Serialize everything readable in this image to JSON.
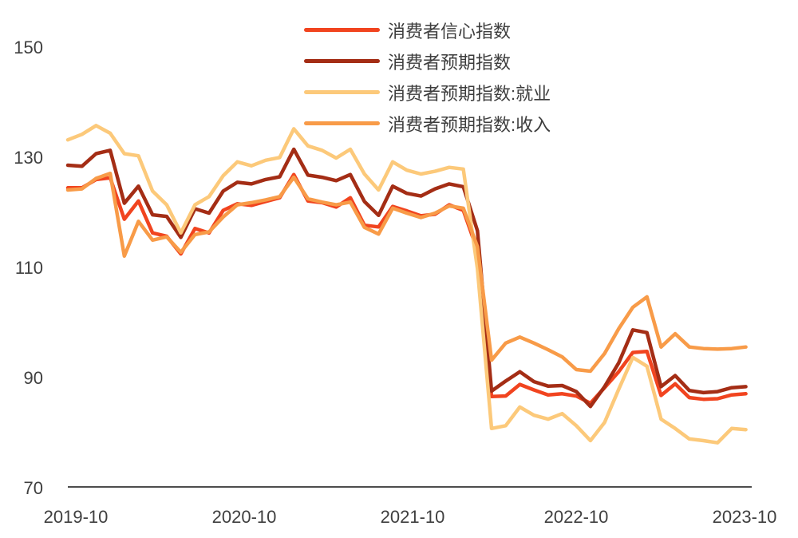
{
  "chart_data": {
    "type": "line",
    "title": "",
    "grid": false,
    "legend_position": "top-center",
    "ylim": [
      70,
      155
    ],
    "y_ticks": [
      150,
      130,
      110,
      90,
      70
    ],
    "y_tick_labels": [
      "150",
      "130",
      "110",
      "90",
      "70"
    ],
    "x_tick_labels": [
      "2019-10",
      "2020-10",
      "2021-10",
      "2022-10",
      "2023-10"
    ],
    "x": [
      "2019-10",
      "2019-11",
      "2019-12",
      "2020-01",
      "2020-02",
      "2020-03",
      "2020-04",
      "2020-05",
      "2020-06",
      "2020-07",
      "2020-08",
      "2020-09",
      "2020-10",
      "2020-11",
      "2020-12",
      "2021-01",
      "2021-02",
      "2021-03",
      "2021-04",
      "2021-05",
      "2021-06",
      "2021-07",
      "2021-08",
      "2021-09",
      "2021-10",
      "2021-11",
      "2021-12",
      "2022-01",
      "2022-02",
      "2022-03",
      "2022-04",
      "2022-05",
      "2022-06",
      "2022-07",
      "2022-08",
      "2022-09",
      "2022-10",
      "2022-11",
      "2022-12",
      "2023-01",
      "2023-02",
      "2023-03",
      "2023-04",
      "2023-05",
      "2023-06",
      "2023-07",
      "2023-08",
      "2023-09",
      "2023-10"
    ],
    "series": [
      {
        "id": "confidence",
        "name": "消费者信心指数",
        "color": "#F1441F",
        "values": [
          124.6,
          124.6,
          126.1,
          126.4,
          118.9,
          122.2,
          116.4,
          115.8,
          112.6,
          117.2,
          116.4,
          120.5,
          121.7,
          121.4,
          122.1,
          122.8,
          127.0,
          122.2,
          121.9,
          121.1,
          122.8,
          117.8,
          117.5,
          121.2,
          120.4,
          119.5,
          119.8,
          121.5,
          120.5,
          113.2,
          86.7,
          86.8,
          88.9,
          87.9,
          87.0,
          87.2,
          86.8,
          85.5,
          88.3,
          91.2,
          94.7,
          94.9,
          86.9,
          89.0,
          86.5,
          86.2,
          86.3,
          87.0,
          87.2
        ]
      },
      {
        "id": "expectations",
        "name": "消费者预期指数",
        "color": "#A42D15",
        "values": [
          128.7,
          128.5,
          130.8,
          131.4,
          121.8,
          124.9,
          119.7,
          119.4,
          115.6,
          120.8,
          120.0,
          124.0,
          125.6,
          125.3,
          126.1,
          126.6,
          131.6,
          126.9,
          126.5,
          125.9,
          127.0,
          122.1,
          119.6,
          124.9,
          123.6,
          123.1,
          124.4,
          125.3,
          124.8,
          116.8,
          87.7,
          89.5,
          91.2,
          89.4,
          88.6,
          88.7,
          87.6,
          84.9,
          88.5,
          92.8,
          98.8,
          98.3,
          88.5,
          90.5,
          87.8,
          87.4,
          87.6,
          88.3,
          88.5
        ]
      },
      {
        "id": "expectations-employment",
        "name": "消费者预期指数:就业",
        "color": "#FCC97A",
        "values": [
          133.3,
          134.3,
          135.9,
          134.5,
          130.8,
          130.4,
          124.0,
          121.5,
          116.4,
          121.5,
          123.0,
          126.8,
          129.3,
          128.6,
          129.6,
          130.1,
          135.3,
          132.2,
          131.4,
          130.0,
          131.6,
          127.1,
          124.2,
          129.3,
          127.8,
          127.1,
          127.6,
          128.3,
          128.0,
          109.9,
          80.9,
          81.4,
          84.8,
          83.3,
          82.6,
          83.6,
          81.4,
          78.7,
          82.0,
          88.0,
          93.8,
          92.2,
          82.6,
          80.9,
          79.0,
          78.7,
          78.3,
          80.9,
          80.7
        ]
      },
      {
        "id": "expectations-income",
        "name": "消费者预期指数:收入",
        "color": "#F89B48",
        "values": [
          124.2,
          124.4,
          126.3,
          127.2,
          112.2,
          118.5,
          115.1,
          115.7,
          112.9,
          116.1,
          116.6,
          119.3,
          121.5,
          121.9,
          122.4,
          123.0,
          126.5,
          122.6,
          122.0,
          121.5,
          122.0,
          117.4,
          116.2,
          120.9,
          120.0,
          119.2,
          120.0,
          121.3,
          120.9,
          113.9,
          93.3,
          96.4,
          97.5,
          96.4,
          95.2,
          93.9,
          91.6,
          91.3,
          94.5,
          99.0,
          102.9,
          104.8,
          95.7,
          98.1,
          95.7,
          95.4,
          95.3,
          95.4,
          95.7
        ]
      }
    ]
  }
}
